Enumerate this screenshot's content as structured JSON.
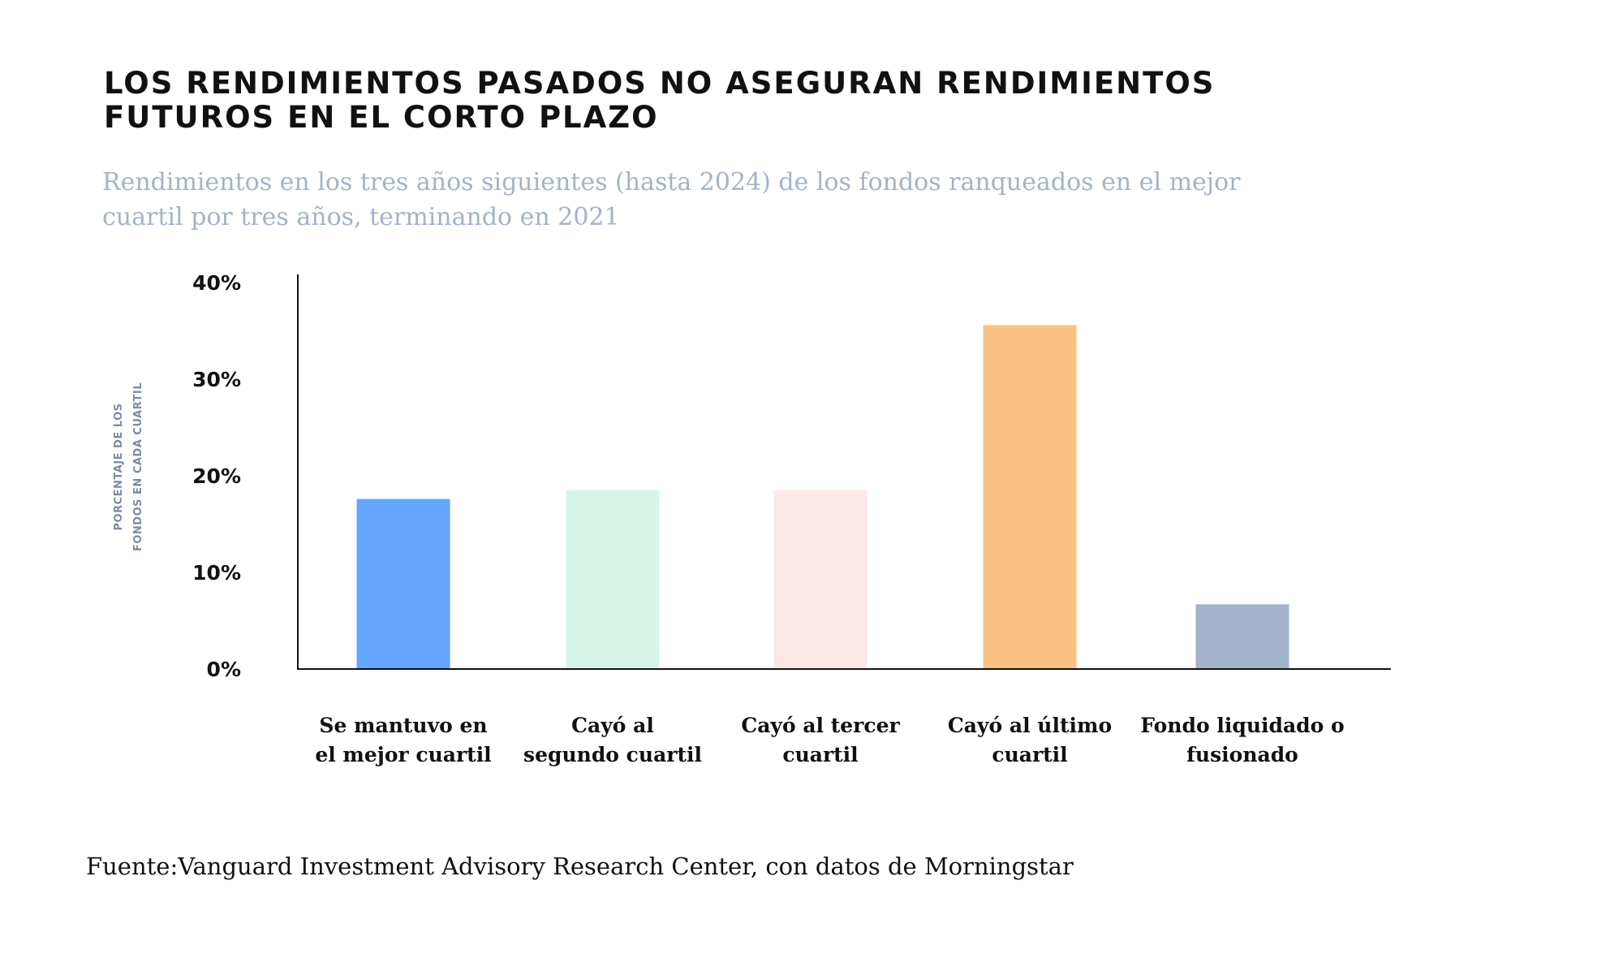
{
  "chart_data": {
    "type": "bar",
    "title": "LOS RENDIMIENTOS PASADOS NO ASEGURAN RENDIMIENTOS FUTUROS EN EL CORTO PLAZO",
    "subtitle": "Rendimientos en los tres años siguientes (hasta 2024) de los fondos ranqueados en el mejor cuartil por tres años, terminando en 2021",
    "ylabel": [
      "PORCENTAJE DE LOS",
      "FONDOS EN CADA CUARTIL"
    ],
    "xlabel": "",
    "ylim": [
      0,
      40
    ],
    "yticks": [
      "0%",
      "10%",
      "20%",
      "30%",
      "40%"
    ],
    "ytick_values": [
      0,
      10,
      20,
      30,
      40
    ],
    "categories": [
      [
        "Se mantuvo en",
        "el mejor cuartil"
      ],
      [
        "Cayó al",
        "segundo cuartil"
      ],
      [
        "Cayó al tercer",
        "cuartil"
      ],
      [
        "Cayó al último",
        "cuartil"
      ],
      [
        "Fondo liquidado o",
        "fusionado"
      ]
    ],
    "values": [
      17.6,
      18.5,
      18.5,
      35.6,
      6.7
    ],
    "colors": [
      "#64a5fd",
      "#d6f5e8",
      "#fde8e8",
      "#fac282",
      "#a3b3cb"
    ],
    "grid": false,
    "legend": "none",
    "source": "Fuente:Vanguard Investment Advisory Research Center, con datos de Morningstar"
  }
}
